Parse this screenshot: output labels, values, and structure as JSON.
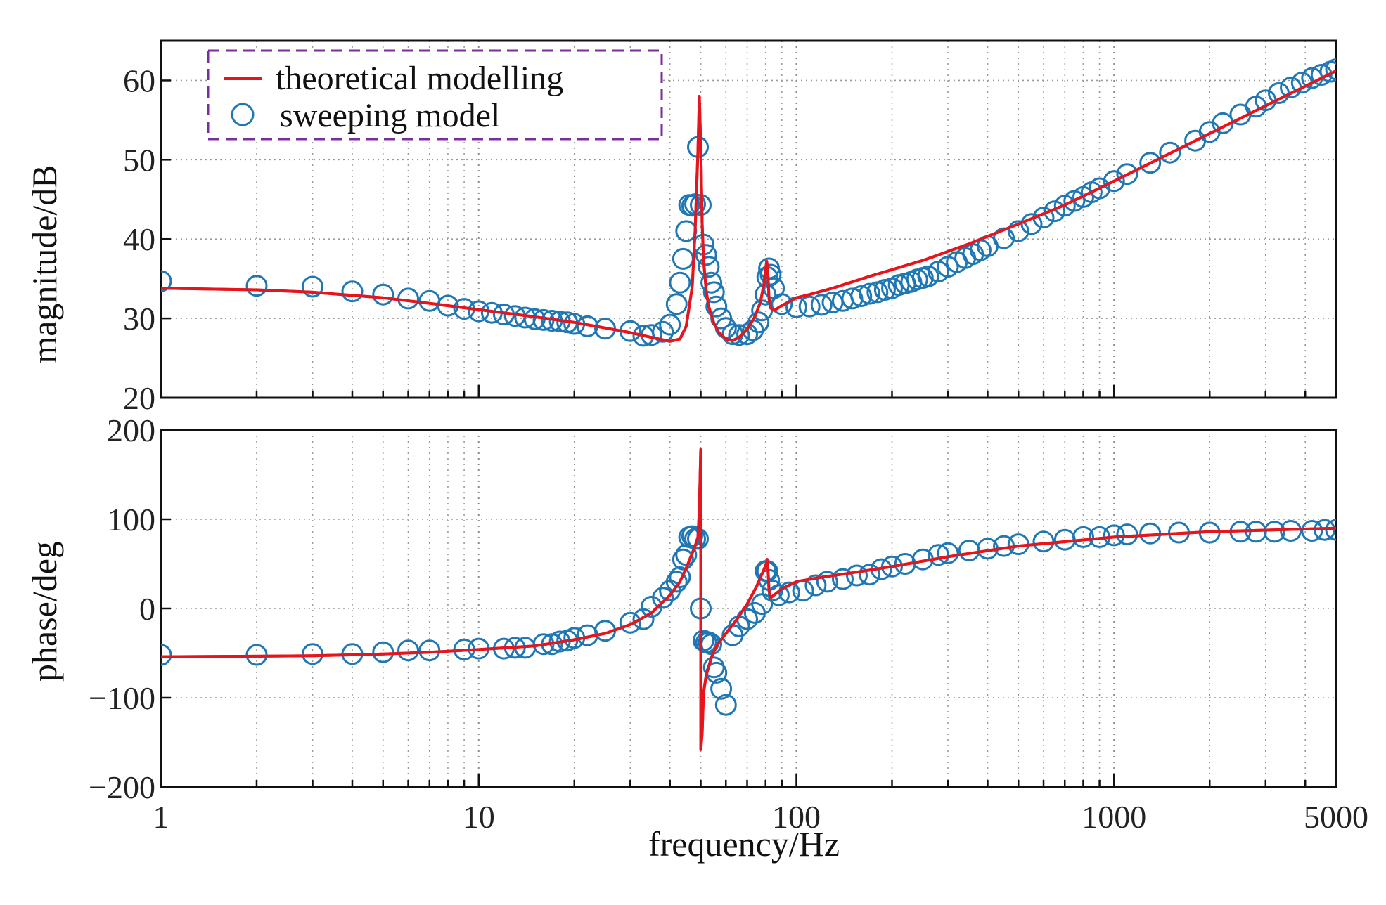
{
  "chart_data": [
    {
      "type": "line",
      "panel": "magnitude",
      "ylabel": "magnitude/dB",
      "xlabel": "",
      "xscale": "log",
      "xlim": [
        1,
        5000
      ],
      "ylim": [
        20,
        65
      ],
      "yticks": [
        20,
        30,
        40,
        50,
        60
      ],
      "ytick_labels": [
        "20",
        "30",
        "40",
        "50",
        "60"
      ],
      "grid": true,
      "legend": {
        "placement": "top-left",
        "entries": [
          {
            "label": "theoretical modelling",
            "marker": "line",
            "color": "#e8141c"
          },
          {
            "label": "sweeping model",
            "marker": "circle",
            "color": "#1f77b4"
          }
        ]
      },
      "series": [
        {
          "name": "theoretical modelling",
          "kind": "line",
          "color": "#e8141c",
          "x": [
            1,
            2,
            3,
            5,
            7,
            10,
            15,
            20,
            25,
            30,
            35,
            40,
            43,
            45,
            47,
            48,
            49,
            49.5,
            50,
            50.5,
            51,
            52,
            53,
            55,
            57,
            60,
            63,
            66,
            70,
            74,
            77,
            79,
            80,
            80.7,
            81.3,
            82,
            83,
            85,
            90,
            100,
            110,
            130,
            170,
            250,
            350,
            500,
            700,
            1000,
            1500,
            2000,
            3000,
            5000
          ],
          "y": [
            33.8,
            33.6,
            33.3,
            32.6,
            31.9,
            31.1,
            30.2,
            29.5,
            28.8,
            28.2,
            27.6,
            27.1,
            27.4,
            29.0,
            34.0,
            41.0,
            51.0,
            58.0,
            52.0,
            42.0,
            37.5,
            33.5,
            31.5,
            29.4,
            28.2,
            27.4,
            27.2,
            27.6,
            28.6,
            30.2,
            32.0,
            34.2,
            36.2,
            37.2,
            35.8,
            32.5,
            31.3,
            31.0,
            31.6,
            32.6,
            33.0,
            33.8,
            35.3,
            37.3,
            39.4,
            41.9,
            44.3,
            47.3,
            50.8,
            53.3,
            56.8,
            61.2
          ]
        },
        {
          "name": "sweeping model",
          "kind": "scatter",
          "color": "#1f77b4",
          "x": [
            1,
            2,
            3,
            4,
            5,
            6,
            7,
            8,
            9,
            10,
            11,
            12,
            13,
            14,
            15,
            16,
            17,
            18,
            19,
            20,
            22,
            25,
            30,
            33,
            35,
            38,
            40,
            42,
            43,
            44,
            45,
            46,
            47,
            48,
            49,
            50,
            51,
            52,
            53,
            54,
            55,
            56,
            58,
            60,
            63,
            66,
            70,
            73,
            76,
            78,
            80,
            81,
            82,
            83,
            85,
            90,
            100,
            110,
            120,
            130,
            140,
            150,
            160,
            170,
            180,
            190,
            200,
            210,
            220,
            230,
            240,
            250,
            260,
            280,
            300,
            320,
            340,
            360,
            380,
            400,
            450,
            500,
            550,
            600,
            650,
            700,
            750,
            800,
            850,
            900,
            1000,
            1100,
            1300,
            1500,
            1800,
            2000,
            2200,
            2500,
            2800,
            3000,
            3300,
            3600,
            3900,
            4200,
            4500,
            4800,
            5000
          ],
          "y": [
            34.7,
            34.1,
            34.0,
            33.4,
            33.0,
            32.5,
            32.2,
            31.6,
            31.2,
            30.9,
            30.7,
            30.5,
            30.3,
            30.1,
            29.9,
            29.8,
            29.7,
            29.6,
            29.5,
            29.3,
            29.0,
            28.7,
            28.4,
            27.8,
            27.9,
            28.3,
            29.2,
            31.8,
            34.5,
            37.5,
            41.0,
            44.3,
            44.2,
            44.4,
            51.6,
            44.3,
            39.3,
            38.0,
            36.5,
            34.5,
            33.3,
            31.5,
            30.0,
            28.8,
            28.0,
            27.9,
            28.0,
            28.5,
            29.5,
            31.0,
            33.0,
            35.2,
            36.3,
            35.5,
            33.8,
            31.8,
            31.4,
            31.5,
            31.7,
            32.0,
            32.2,
            32.5,
            32.8,
            33.1,
            33.3,
            33.6,
            33.8,
            34.2,
            34.4,
            34.6,
            34.9,
            35.1,
            35.3,
            35.9,
            36.5,
            37.1,
            37.6,
            38.1,
            38.6,
            39.1,
            40.1,
            41.0,
            41.9,
            42.7,
            43.5,
            44.2,
            44.8,
            45.3,
            45.9,
            46.4,
            47.3,
            48.2,
            49.6,
            50.9,
            52.4,
            53.5,
            54.6,
            55.7,
            56.7,
            57.5,
            58.4,
            59.1,
            59.7,
            60.3,
            60.7,
            61.1,
            61.4
          ]
        }
      ]
    },
    {
      "type": "line",
      "panel": "phase",
      "ylabel": "phase/deg",
      "xlabel": "frequency/Hz",
      "xscale": "log",
      "xlim": [
        1,
        5000
      ],
      "ylim": [
        -200,
        200
      ],
      "yticks": [
        -200,
        -100,
        0,
        100,
        200
      ],
      "ytick_labels": [
        "−200",
        "−100",
        "0",
        "100",
        "200"
      ],
      "xticks": [
        1,
        10,
        100,
        1000,
        5000
      ],
      "xtick_labels": [
        "1",
        "10",
        "100",
        "1000",
        "5000"
      ],
      "grid": true,
      "series": [
        {
          "name": "theoretical modelling",
          "kind": "line",
          "color": "#e8141c",
          "x": [
            1,
            2,
            3,
            5,
            7,
            10,
            15,
            20,
            25,
            30,
            35,
            40,
            43,
            45,
            47,
            48,
            49,
            49.5,
            49.99,
            50.01,
            50.5,
            51,
            52,
            54,
            56,
            60,
            65,
            70,
            75,
            80,
            81,
            81.5,
            82,
            83,
            85,
            90,
            100,
            120,
            150,
            200,
            300,
            500,
            1000,
            2000,
            5000
          ],
          "y": [
            -54,
            -53.5,
            -53,
            -51,
            -49,
            -46,
            -42,
            -35,
            -28,
            -18,
            -5,
            15,
            30,
            45,
            62,
            70,
            80,
            110,
            178,
            -158,
            -140,
            -95,
            -75,
            -55,
            -42,
            -28,
            -12,
            5,
            25,
            48,
            55,
            40,
            20,
            12,
            15,
            22,
            30,
            35,
            40,
            47,
            58,
            70,
            80,
            86,
            90
          ]
        },
        {
          "name": "sweeping model",
          "kind": "scatter",
          "color": "#1f77b4",
          "x": [
            1,
            2,
            3,
            4,
            5,
            6,
            7,
            9,
            10,
            12,
            13,
            14,
            16,
            17,
            18,
            19,
            20,
            22,
            25,
            30,
            33,
            35,
            38,
            40,
            42,
            43,
            44,
            45,
            46,
            47,
            48,
            49,
            50,
            51,
            52,
            53,
            54,
            55,
            56,
            58,
            60,
            63,
            66,
            70,
            74,
            78,
            80,
            81,
            82,
            84,
            88,
            95,
            105,
            115,
            125,
            140,
            155,
            170,
            185,
            200,
            220,
            250,
            280,
            300,
            350,
            400,
            450,
            500,
            600,
            700,
            800,
            900,
            1000,
            1100,
            1300,
            1600,
            2000,
            2500,
            2800,
            3200,
            3600,
            4200,
            4600,
            5000
          ],
          "y": [
            -52,
            -52,
            -51,
            -51,
            -49,
            -47,
            -47,
            -46,
            -45,
            -45,
            -44,
            -44,
            -40,
            -40,
            -37,
            -36,
            -33,
            -30,
            -25,
            -16,
            -12,
            2,
            12,
            20,
            30,
            35,
            55,
            60,
            80,
            81,
            78,
            78,
            0,
            -36,
            -38,
            -38,
            -40,
            -66,
            -72,
            -90,
            -108,
            -30,
            -20,
            -12,
            -5,
            5,
            42,
            42,
            32,
            20,
            15,
            18,
            20,
            26,
            30,
            33,
            37,
            38,
            44,
            47,
            50,
            55,
            60,
            62,
            65,
            67,
            70,
            72,
            75,
            77,
            80,
            80,
            82,
            83,
            84,
            85,
            85,
            86,
            86,
            86,
            87,
            87,
            88,
            88
          ]
        }
      ]
    }
  ]
}
